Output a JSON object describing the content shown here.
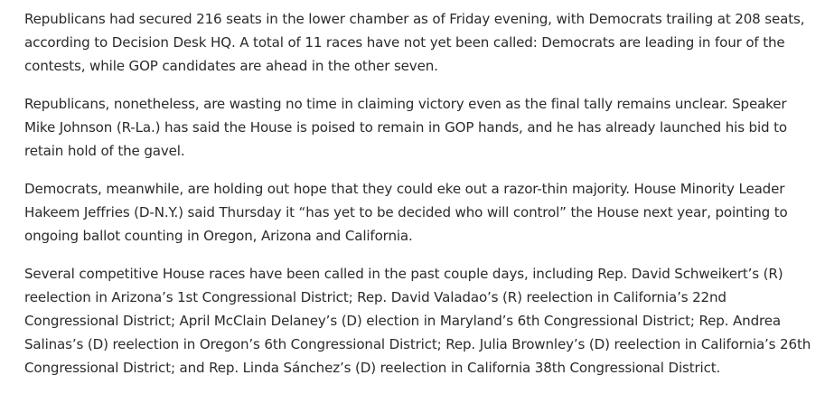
{
  "article": {
    "paragraphs": [
      "Republicans had secured 216 seats in the lower chamber as of Friday evening, with Democrats trailing at 208 seats, according to Decision Desk HQ. A total of 11 races have not yet been called: Democrats are leading in four of the contests, while GOP candidates are ahead in the other seven.",
      "Republicans, nonetheless, are wasting no time in claiming victory even as the final tally remains unclear. Speaker Mike Johnson (R-La.) has said the House is poised to remain in GOP hands, and he has already launched his bid to retain hold of the gavel.",
      "Democrats, meanwhile, are holding out hope that they could eke out a razor-thin majority. House Minority Leader Hakeem Jeffries (D-N.Y.) said Thursday it “has yet to be decided who will control” the House next year, pointing to ongoing ballot counting in Oregon, Arizona and California.",
      "Several competitive House races have been called in the past couple days, including Rep. David Schweikert’s (R) reelection in Arizona’s 1st Congressional District; Rep. David Valadao’s (R) reelection in California’s 22nd Congressional District; April McClain Delaney’s (D) election in Maryland’s 6th Congressional District; Rep. Andrea Salinas’s (D) reelection in Oregon’s 6th Congressional District; Rep. Julia Brownley’s (D) reelection in California’s 26th Congressional District; and Rep. Linda Sánchez’s (D) reelection in California 38th Congressional District."
    ]
  }
}
